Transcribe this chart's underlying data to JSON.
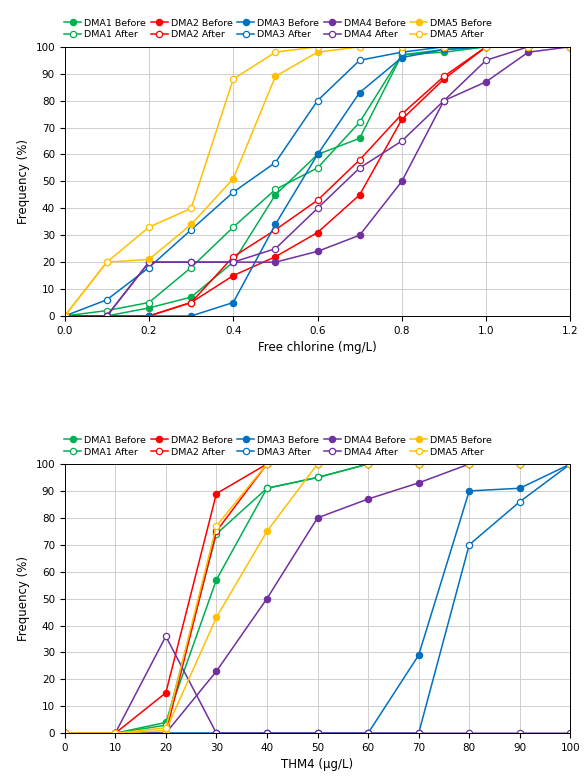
{
  "plot1": {
    "xlabel": "Free chlorine (mg/L)",
    "ylabel": "Frequency (%)",
    "xlim": [
      0.0,
      1.2
    ],
    "ylim": [
      0,
      100
    ],
    "xticks": [
      0.0,
      0.2,
      0.4,
      0.6,
      0.8,
      1.0,
      1.2
    ],
    "yticks": [
      0,
      10,
      20,
      30,
      40,
      50,
      60,
      70,
      80,
      90,
      100
    ],
    "series": [
      {
        "name": "DMA1 Before",
        "color": "#00b050",
        "x": [
          0.0,
          0.1,
          0.2,
          0.3,
          0.4,
          0.5,
          0.6,
          0.7,
          0.8,
          0.9,
          1.0,
          1.1,
          1.2
        ],
        "y": [
          0,
          0,
          3,
          7,
          20,
          45,
          60,
          66,
          97,
          98,
          100,
          100,
          100
        ],
        "filled": true
      },
      {
        "name": "DMA1 After",
        "color": "#00b050",
        "x": [
          0.0,
          0.1,
          0.2,
          0.3,
          0.4,
          0.5,
          0.6,
          0.7,
          0.8,
          0.9,
          1.0,
          1.1,
          1.2
        ],
        "y": [
          0,
          2,
          5,
          18,
          33,
          47,
          55,
          72,
          97,
          99,
          100,
          100,
          100
        ],
        "filled": false
      },
      {
        "name": "DMA2 Before",
        "color": "#ff0000",
        "x": [
          0.0,
          0.1,
          0.2,
          0.3,
          0.4,
          0.5,
          0.6,
          0.7,
          0.8,
          0.9,
          1.0,
          1.1,
          1.2
        ],
        "y": [
          0,
          0,
          0,
          5,
          15,
          22,
          31,
          45,
          73,
          88,
          100,
          100,
          100
        ],
        "filled": true
      },
      {
        "name": "DMA2 After",
        "color": "#ff0000",
        "x": [
          0.0,
          0.1,
          0.2,
          0.3,
          0.4,
          0.5,
          0.6,
          0.7,
          0.8,
          0.9,
          1.0,
          1.1,
          1.2
        ],
        "y": [
          0,
          0,
          0,
          5,
          22,
          32,
          43,
          58,
          75,
          89,
          100,
          100,
          100
        ],
        "filled": false
      },
      {
        "name": "DMA3 Before",
        "color": "#0070c0",
        "x": [
          0.0,
          0.1,
          0.2,
          0.3,
          0.4,
          0.5,
          0.6,
          0.7,
          0.8,
          0.9,
          1.0,
          1.1,
          1.2
        ],
        "y": [
          0,
          0,
          0,
          0,
          5,
          34,
          60,
          83,
          96,
          99,
          100,
          100,
          100
        ],
        "filled": true
      },
      {
        "name": "DMA3 After",
        "color": "#0070c0",
        "x": [
          0.0,
          0.1,
          0.2,
          0.3,
          0.4,
          0.5,
          0.6,
          0.7,
          0.8,
          0.9,
          1.0,
          1.1,
          1.2
        ],
        "y": [
          0,
          6,
          18,
          32,
          46,
          57,
          80,
          95,
          98,
          100,
          100,
          100,
          100
        ],
        "filled": false
      },
      {
        "name": "DMA4 Before",
        "color": "#7030a0",
        "x": [
          0.0,
          0.1,
          0.2,
          0.3,
          0.4,
          0.5,
          0.6,
          0.7,
          0.8,
          0.9,
          1.0,
          1.1,
          1.2
        ],
        "y": [
          0,
          0,
          20,
          20,
          20,
          20,
          24,
          30,
          50,
          80,
          87,
          98,
          100
        ],
        "filled": true
      },
      {
        "name": "DMA4 After",
        "color": "#7030a0",
        "x": [
          0.0,
          0.1,
          0.2,
          0.3,
          0.4,
          0.5,
          0.6,
          0.7,
          0.8,
          0.9,
          1.0,
          1.1,
          1.2
        ],
        "y": [
          0,
          0,
          20,
          20,
          20,
          25,
          40,
          55,
          65,
          80,
          95,
          100,
          100
        ],
        "filled": false
      },
      {
        "name": "DMA5 Before",
        "color": "#ffc000",
        "x": [
          0.0,
          0.1,
          0.2,
          0.3,
          0.4,
          0.5,
          0.6,
          0.7,
          0.8,
          0.9,
          1.0,
          1.1,
          1.2
        ],
        "y": [
          0,
          20,
          21,
          34,
          51,
          89,
          98,
          100,
          100,
          100,
          100,
          100,
          100
        ],
        "filled": true
      },
      {
        "name": "DMA5 After",
        "color": "#ffc000",
        "x": [
          0.0,
          0.1,
          0.2,
          0.3,
          0.4,
          0.5,
          0.6,
          0.7,
          0.8,
          0.9,
          1.0,
          1.1,
          1.2
        ],
        "y": [
          0,
          20,
          33,
          40,
          88,
          98,
          100,
          100,
          100,
          100,
          100,
          100,
          100
        ],
        "filled": false
      }
    ]
  },
  "plot2": {
    "xlabel": "THM4 (μg/L)",
    "ylabel": "Frequency (%)",
    "xlim": [
      0,
      100
    ],
    "ylim": [
      0,
      100
    ],
    "xticks": [
      0,
      10,
      20,
      30,
      40,
      50,
      60,
      70,
      80,
      90,
      100
    ],
    "yticks": [
      0,
      10,
      20,
      30,
      40,
      50,
      60,
      70,
      80,
      90,
      100
    ],
    "series": [
      {
        "name": "DMA1 Before",
        "color": "#00b050",
        "x": [
          0,
          10,
          20,
          30,
          40,
          50,
          60,
          70,
          80,
          90,
          100
        ],
        "y": [
          0,
          0,
          4,
          57,
          91,
          95,
          100,
          100,
          100,
          100,
          100
        ],
        "filled": true
      },
      {
        "name": "DMA1 After",
        "color": "#00b050",
        "x": [
          0,
          10,
          20,
          30,
          40,
          50,
          60,
          70,
          80,
          90,
          100
        ],
        "y": [
          0,
          0,
          3,
          74,
          91,
          95,
          100,
          100,
          100,
          100,
          100
        ],
        "filled": false
      },
      {
        "name": "DMA2 Before",
        "color": "#ff0000",
        "x": [
          0,
          10,
          20,
          30,
          40,
          50,
          60,
          70,
          80,
          90,
          100
        ],
        "y": [
          0,
          0,
          15,
          89,
          100,
          100,
          100,
          100,
          100,
          100,
          100
        ],
        "filled": true
      },
      {
        "name": "DMA2 After",
        "color": "#ff0000",
        "x": [
          0,
          10,
          20,
          30,
          40,
          50,
          60,
          70,
          80,
          90,
          100
        ],
        "y": [
          0,
          0,
          0,
          75,
          100,
          100,
          100,
          100,
          100,
          100,
          100
        ],
        "filled": false
      },
      {
        "name": "DMA3 Before",
        "color": "#0070c0",
        "x": [
          0,
          10,
          20,
          30,
          40,
          50,
          60,
          70,
          80,
          90,
          100
        ],
        "y": [
          0,
          0,
          0,
          0,
          0,
          0,
          0,
          29,
          90,
          91,
          100
        ],
        "filled": true
      },
      {
        "name": "DMA3 After",
        "color": "#0070c0",
        "x": [
          0,
          10,
          20,
          30,
          40,
          50,
          60,
          70,
          80,
          90,
          100
        ],
        "y": [
          0,
          0,
          0,
          0,
          0,
          0,
          0,
          0,
          70,
          86,
          100
        ],
        "filled": false
      },
      {
        "name": "DMA4 Before",
        "color": "#7030a0",
        "x": [
          0,
          10,
          20,
          30,
          40,
          50,
          60,
          70,
          80,
          90,
          100
        ],
        "y": [
          0,
          0,
          0,
          23,
          50,
          80,
          87,
          93,
          100,
          100,
          100
        ],
        "filled": true
      },
      {
        "name": "DMA4 After",
        "color": "#7030a0",
        "x": [
          0,
          10,
          20,
          30,
          40,
          50,
          60,
          70,
          80,
          90,
          100
        ],
        "y": [
          0,
          0,
          36,
          0,
          0,
          0,
          0,
          0,
          0,
          0,
          0
        ],
        "filled": false
      },
      {
        "name": "DMA5 Before",
        "color": "#ffc000",
        "x": [
          0,
          10,
          20,
          30,
          40,
          50,
          60,
          70,
          80,
          90,
          100
        ],
        "y": [
          0,
          0,
          1,
          43,
          75,
          100,
          100,
          100,
          100,
          100,
          100
        ],
        "filled": true
      },
      {
        "name": "DMA5 After",
        "color": "#ffc000",
        "x": [
          0,
          10,
          20,
          30,
          40,
          50,
          60,
          70,
          80,
          90,
          100
        ],
        "y": [
          0,
          0,
          2,
          77,
          100,
          100,
          100,
          100,
          100,
          100,
          100
        ],
        "filled": false
      }
    ]
  }
}
